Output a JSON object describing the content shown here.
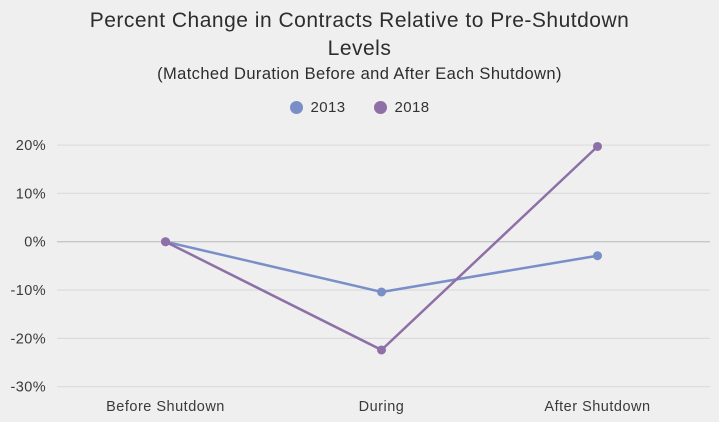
{
  "colors": {
    "background": "#efeff0",
    "gridline": "#dcdcdc",
    "zero_line": "#c6c6c6",
    "title_text": "#2d2d2d",
    "axis_text": "#3a3a3a",
    "series_2013": "#7a8ec8",
    "series_2018": "#8e6fa6"
  },
  "chart_data": {
    "type": "line",
    "title": "Percent Change in Contracts Relative to Pre-Shutdown Levels",
    "subtitle": "(Matched Duration Before and After Each Shutdown)",
    "xlabel": "",
    "ylabel": "",
    "categories": [
      "Before Shutdown",
      "During",
      "After Shutdown"
    ],
    "series": [
      {
        "name": "2013",
        "color": "#7a8ec8",
        "values": [
          0,
          -10.4,
          -2.9
        ]
      },
      {
        "name": "2018",
        "color": "#8e6fa6",
        "values": [
          0,
          -22.4,
          19.7
        ]
      }
    ],
    "y_ticks": [
      20,
      10,
      0,
      -10,
      -20,
      -30
    ],
    "y_tick_labels": [
      "20%",
      "10%",
      "0%",
      "-10%",
      "-20%",
      "-30%"
    ],
    "ylim": [
      -33,
      23
    ],
    "grid": "horizontal",
    "legend_position": "top",
    "markers": "circle"
  }
}
